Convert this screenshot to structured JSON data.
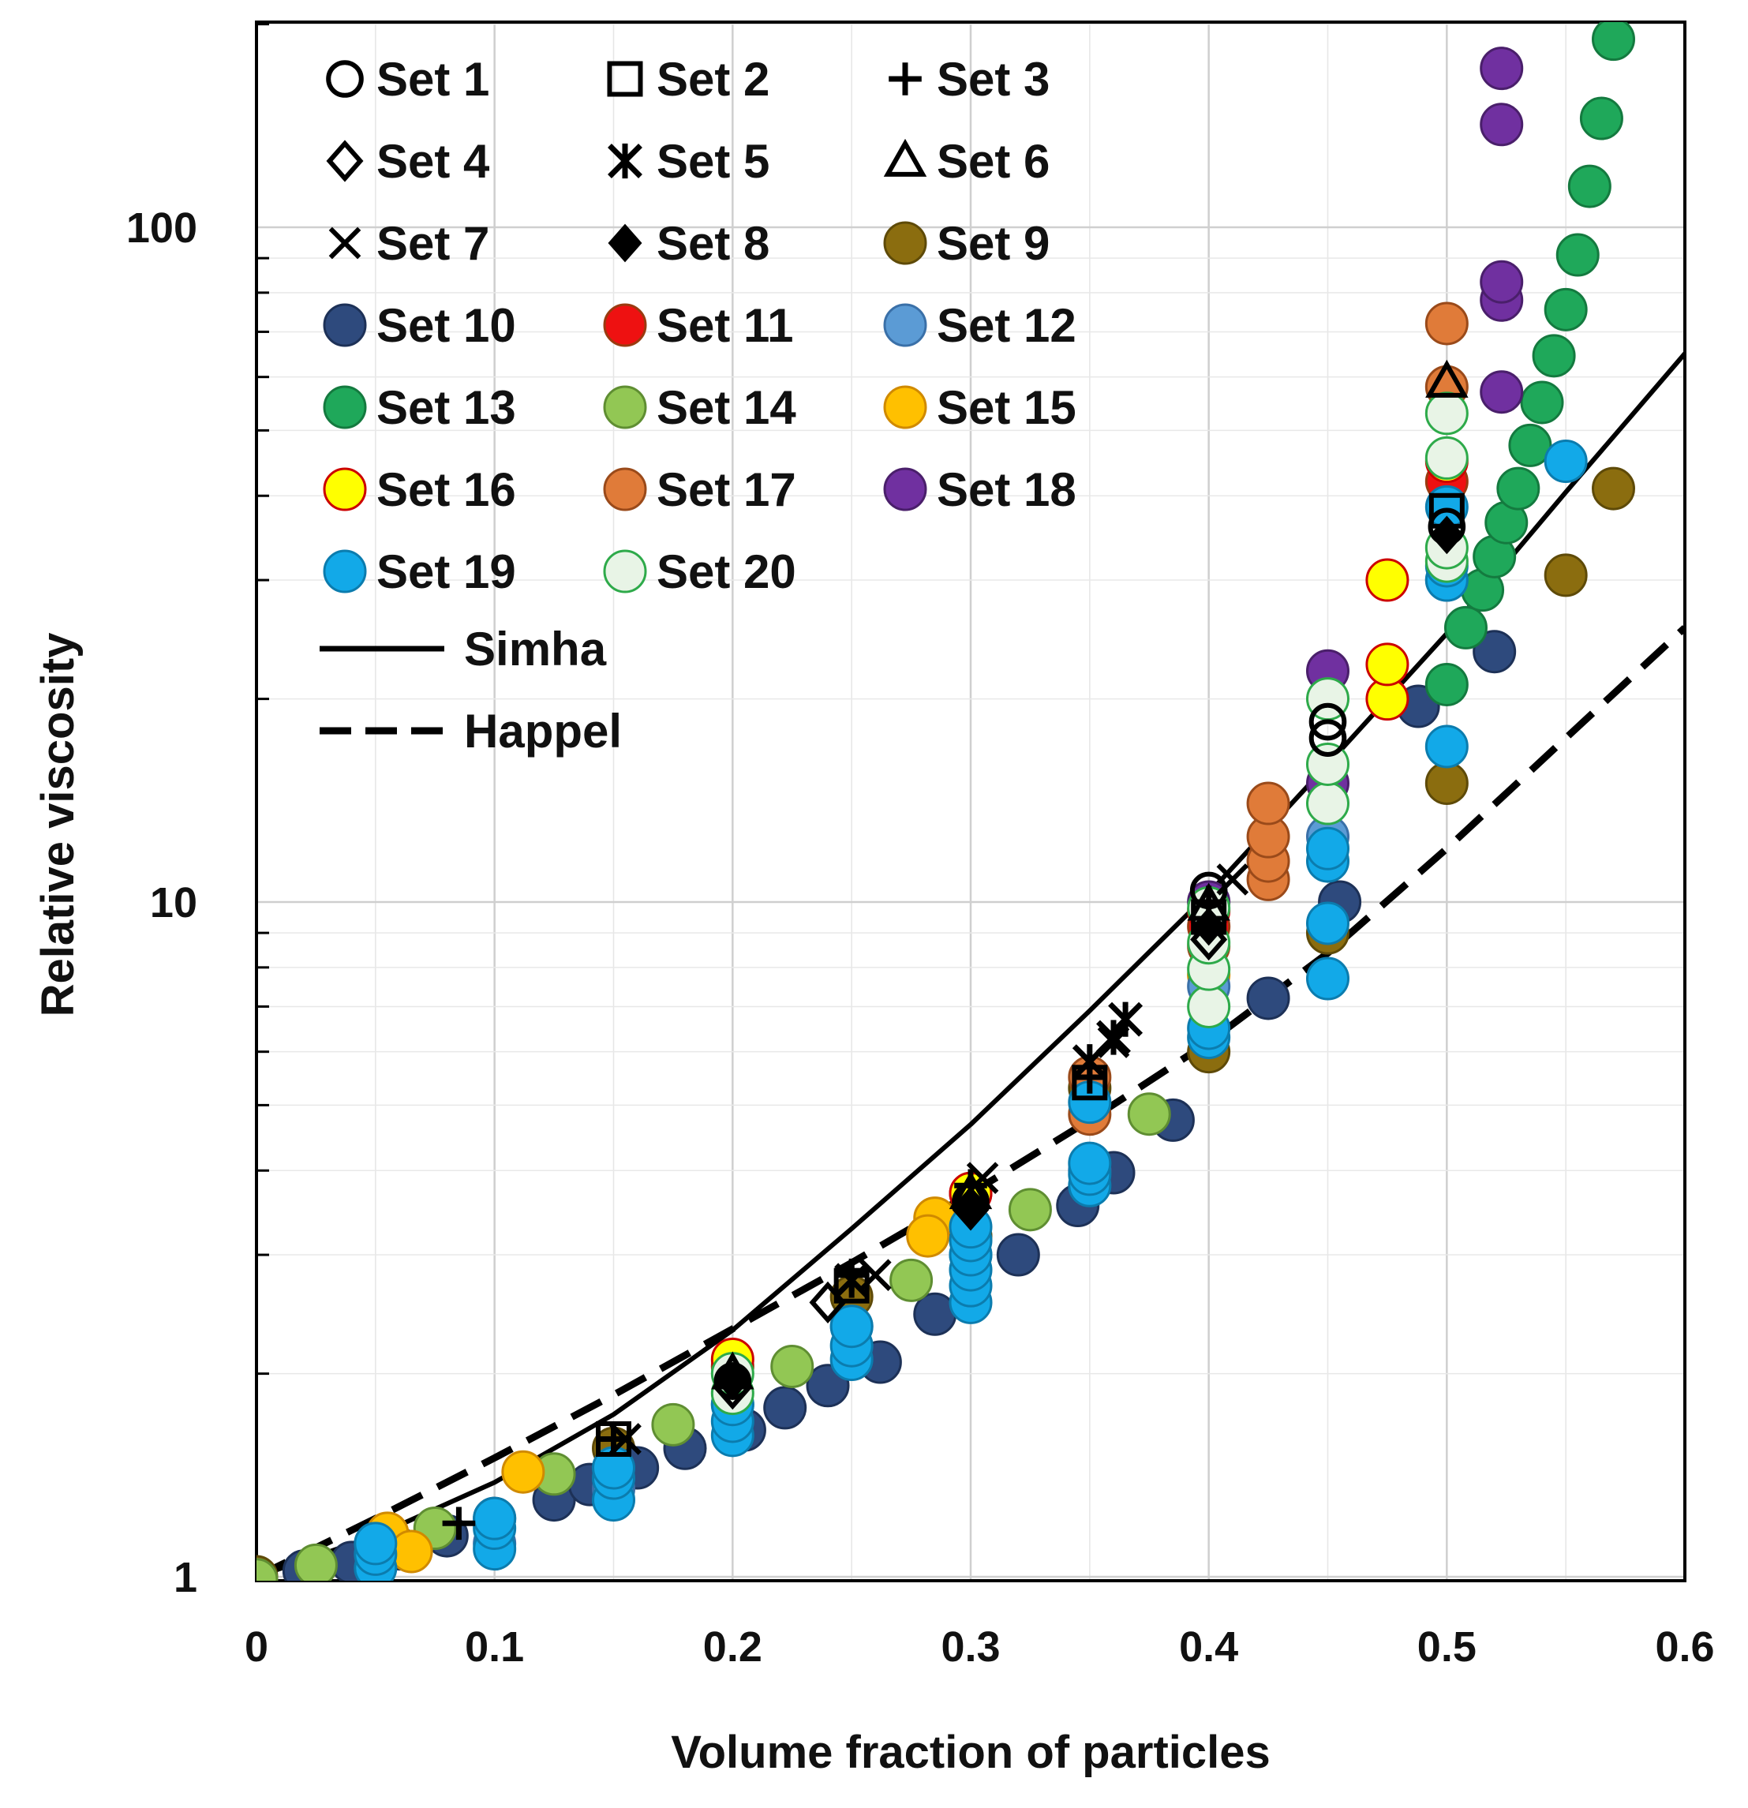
{
  "chart_data": {
    "type": "scatter",
    "title": "",
    "xlabel": "Volume fraction of particles",
    "ylabel": "Relative viscosity",
    "xlim": [
      0,
      0.6
    ],
    "ylim": [
      0.95,
      200
    ],
    "y_scale": "log",
    "x_ticks": [
      0,
      0.1,
      0.2,
      0.3,
      0.4,
      0.5,
      0.6
    ],
    "x_tick_labels": [
      "0",
      "0.1",
      "0.2",
      "0.3",
      "0.4",
      "0.5",
      "0.6"
    ],
    "y_ticks": [
      1,
      10,
      100
    ],
    "y_tick_labels": [
      "1",
      "10",
      "100"
    ],
    "grid": true,
    "legend_position": "top-left",
    "series": [
      {
        "name": "Set 1",
        "marker": "open-circle",
        "fill": "none",
        "stroke": "#000000",
        "points": [
          [
            0.2,
            1.95
          ],
          [
            0.3,
            3.6
          ],
          [
            0.4,
            10.4
          ],
          [
            0.45,
            17.5
          ],
          [
            0.45,
            18.5
          ],
          [
            0.5,
            36
          ]
        ]
      },
      {
        "name": "Set 2",
        "marker": "open-square",
        "fill": "none",
        "stroke": "#000000",
        "points": [
          [
            0.15,
            1.6
          ],
          [
            0.25,
            2.7
          ],
          [
            0.35,
            5.4
          ],
          [
            0.4,
            9.5
          ],
          [
            0.5,
            38
          ]
        ]
      },
      {
        "name": "Set 3",
        "marker": "plus",
        "fill": "none",
        "stroke": "#000000",
        "points": [
          [
            0.085,
            1.2
          ],
          [
            0.15,
            1.6
          ],
          [
            0.25,
            2.8
          ],
          [
            0.3,
            3.8
          ],
          [
            0.35,
            5.5
          ],
          [
            0.4,
            10
          ]
        ]
      },
      {
        "name": "Set 4",
        "marker": "open-diamond",
        "fill": "none",
        "stroke": "#000000",
        "points": [
          [
            0.2,
            1.9
          ],
          [
            0.24,
            2.55
          ],
          [
            0.3,
            3.5
          ],
          [
            0.4,
            8.8
          ]
        ]
      },
      {
        "name": "Set 5",
        "marker": "asterisk",
        "fill": "none",
        "stroke": "#000000",
        "points": [
          [
            0.25,
            2.75
          ],
          [
            0.35,
            5.8
          ],
          [
            0.36,
            6.3
          ],
          [
            0.365,
            6.7
          ]
        ]
      },
      {
        "name": "Set 6",
        "marker": "open-triangle",
        "fill": "none",
        "stroke": "#000000",
        "points": [
          [
            0.2,
            2.0
          ],
          [
            0.3,
            3.7
          ],
          [
            0.4,
            9.9
          ],
          [
            0.5,
            59
          ]
        ]
      },
      {
        "name": "Set 7",
        "marker": "x",
        "fill": "none",
        "stroke": "#000000",
        "points": [
          [
            0.155,
            1.6
          ],
          [
            0.26,
            2.8
          ],
          [
            0.305,
            3.9
          ],
          [
            0.36,
            6.2
          ],
          [
            0.41,
            10.8
          ]
        ]
      },
      {
        "name": "Set 8",
        "marker": "filled-diamond",
        "fill": "#000000",
        "stroke": "#000000",
        "points": [
          [
            0.2,
            1.95
          ],
          [
            0.3,
            3.55
          ],
          [
            0.4,
            9.2
          ],
          [
            0.5,
            35
          ]
        ]
      },
      {
        "name": "Set 9",
        "marker": "circle",
        "fill": "#8B6D0F",
        "stroke": "#5e4a08",
        "points": [
          [
            0,
            1.0
          ],
          [
            0.15,
            1.55
          ],
          [
            0.25,
            2.6
          ],
          [
            0.3,
            3.2
          ],
          [
            0.35,
            5.3
          ],
          [
            0.4,
            6.0
          ],
          [
            0.45,
            9.0
          ],
          [
            0.5,
            15.0
          ],
          [
            0.55,
            30.5
          ],
          [
            0.57,
            41
          ]
        ]
      },
      {
        "name": "Set 10",
        "marker": "circle",
        "fill": "#2E4A7D",
        "stroke": "#1d3157",
        "points": [
          [
            0.02,
            1.02
          ],
          [
            0.04,
            1.05
          ],
          [
            0.06,
            1.1
          ],
          [
            0.08,
            1.15
          ],
          [
            0.1,
            1.22
          ],
          [
            0.125,
            1.3
          ],
          [
            0.14,
            1.37
          ],
          [
            0.16,
            1.45
          ],
          [
            0.18,
            1.55
          ],
          [
            0.205,
            1.65
          ],
          [
            0.222,
            1.78
          ],
          [
            0.24,
            1.92
          ],
          [
            0.262,
            2.08
          ],
          [
            0.285,
            2.45
          ],
          [
            0.32,
            3.0
          ],
          [
            0.345,
            3.55
          ],
          [
            0.36,
            3.97
          ],
          [
            0.385,
            4.75
          ],
          [
            0.425,
            7.2
          ],
          [
            0.455,
            10.0
          ],
          [
            0.488,
            19.5
          ],
          [
            0.52,
            23.5
          ]
        ]
      },
      {
        "name": "Set 11",
        "marker": "circle",
        "fill": "#EE1111",
        "stroke": "#9a3b10",
        "points": [
          [
            0.2,
            2.05
          ],
          [
            0.3,
            3.7
          ],
          [
            0.4,
            9.2
          ],
          [
            0.5,
            42
          ]
        ]
      },
      {
        "name": "Set 12",
        "marker": "circle",
        "fill": "#5B9BD5",
        "stroke": "#3a70a8",
        "points": [
          [
            0.1,
            1.12
          ],
          [
            0.15,
            1.35
          ],
          [
            0.2,
            1.8
          ],
          [
            0.25,
            2.35
          ],
          [
            0.3,
            3.0
          ],
          [
            0.35,
            4.0
          ],
          [
            0.4,
            7.5
          ],
          [
            0.45,
            12.5
          ],
          [
            0.5,
            30
          ]
        ]
      },
      {
        "name": "Set 13",
        "marker": "circle",
        "fill": "#1FA85A",
        "stroke": "#147a3f",
        "points": [
          [
            0.508,
            25.5
          ],
          [
            0.5,
            21.0
          ],
          [
            0.515,
            29.0
          ],
          [
            0.52,
            32.5
          ],
          [
            0.525,
            36.5
          ],
          [
            0.53,
            41.0
          ],
          [
            0.535,
            47.5
          ],
          [
            0.54,
            55.0
          ],
          [
            0.545,
            64.5
          ],
          [
            0.55,
            75.5
          ],
          [
            0.555,
            91.0
          ],
          [
            0.56,
            115.0
          ],
          [
            0.565,
            145.0
          ],
          [
            0.57,
            190.0
          ]
        ]
      },
      {
        "name": "Set 14",
        "marker": "circle",
        "fill": "#92C754",
        "stroke": "#5f8e32",
        "points": [
          [
            0,
            0.99
          ],
          [
            0.025,
            1.04
          ],
          [
            0.075,
            1.18
          ],
          [
            0.125,
            1.42
          ],
          [
            0.175,
            1.68
          ],
          [
            0.225,
            2.05
          ],
          [
            0.275,
            2.75
          ],
          [
            0.325,
            3.5
          ],
          [
            0.375,
            4.85
          ]
        ]
      },
      {
        "name": "Set 15",
        "marker": "circle",
        "fill": "#FFC000",
        "stroke": "#d08a00",
        "points": [
          [
            0.055,
            1.16
          ],
          [
            0.065,
            1.09
          ],
          [
            0.112,
            1.43
          ],
          [
            0.285,
            3.4
          ],
          [
            0.282,
            3.2
          ],
          [
            0.4,
            7.8
          ]
        ]
      },
      {
        "name": "Set 16",
        "marker": "circle",
        "fill": "#FFFF00",
        "stroke": "#CC0000",
        "points": [
          [
            0.2,
            2.1
          ],
          [
            0.3,
            3.7
          ],
          [
            0.4,
            9.7
          ],
          [
            0.475,
            20.0
          ],
          [
            0.475,
            22.5
          ],
          [
            0.475,
            30.0
          ],
          [
            0.5,
            45.0
          ]
        ]
      },
      {
        "name": "Set 17",
        "marker": "circle",
        "fill": "#E07B39",
        "stroke": "#9a4a1a",
        "points": [
          [
            0.35,
            5.5
          ],
          [
            0.35,
            4.85
          ],
          [
            0.4,
            8.6
          ],
          [
            0.425,
            10.8
          ],
          [
            0.425,
            11.5
          ],
          [
            0.425,
            12.5
          ],
          [
            0.425,
            14.0
          ],
          [
            0.5,
            58
          ],
          [
            0.5,
            72
          ]
        ]
      },
      {
        "name": "Set 18",
        "marker": "circle",
        "fill": "#7030A0",
        "stroke": "#4a1f6b",
        "points": [
          [
            0.4,
            10.0
          ],
          [
            0.45,
            15.0
          ],
          [
            0.45,
            22.0
          ],
          [
            0.523,
            57
          ],
          [
            0.523,
            78
          ],
          [
            0.523,
            83
          ],
          [
            0.523,
            142
          ],
          [
            0.523,
            172
          ]
        ]
      },
      {
        "name": "Set 19",
        "marker": "circle",
        "fill": "#12A9E8",
        "stroke": "#0b7cae",
        "points": [
          [
            0.05,
            1.03
          ],
          [
            0.05,
            1.08
          ],
          [
            0.05,
            1.12
          ],
          [
            0.1,
            1.1
          ],
          [
            0.1,
            1.18
          ],
          [
            0.1,
            1.22
          ],
          [
            0.15,
            1.3
          ],
          [
            0.15,
            1.4
          ],
          [
            0.15,
            1.45
          ],
          [
            0.2,
            1.62
          ],
          [
            0.2,
            1.7
          ],
          [
            0.2,
            1.8
          ],
          [
            0.25,
            2.1
          ],
          [
            0.25,
            2.2
          ],
          [
            0.25,
            2.35
          ],
          [
            0.3,
            2.55
          ],
          [
            0.3,
            2.7
          ],
          [
            0.3,
            2.85
          ],
          [
            0.3,
            3.0
          ],
          [
            0.3,
            3.15
          ],
          [
            0.3,
            3.3
          ],
          [
            0.35,
            3.8
          ],
          [
            0.35,
            3.95
          ],
          [
            0.35,
            4.1
          ],
          [
            0.35,
            5.05
          ],
          [
            0.4,
            6.3
          ],
          [
            0.4,
            6.5
          ],
          [
            0.45,
            7.7
          ],
          [
            0.45,
            9.3
          ],
          [
            0.45,
            11.5
          ],
          [
            0.45,
            12.0
          ],
          [
            0.5,
            17.0
          ],
          [
            0.5,
            30.0
          ],
          [
            0.5,
            31.5
          ],
          [
            0.5,
            38.5
          ],
          [
            0.55,
            45.0
          ]
        ]
      },
      {
        "name": "Set 20",
        "marker": "circle",
        "fill": "#E8F4E6",
        "stroke": "#2EAA4A",
        "points": [
          [
            0.2,
            1.87
          ],
          [
            0.2,
            2.0
          ],
          [
            0.4,
            7.0
          ],
          [
            0.4,
            7.95
          ],
          [
            0.4,
            8.7
          ],
          [
            0.4,
            9.8
          ],
          [
            0.45,
            14.0
          ],
          [
            0.45,
            16.0
          ],
          [
            0.45,
            20.0
          ],
          [
            0.5,
            32.0
          ],
          [
            0.5,
            33.5
          ],
          [
            0.5,
            45.5
          ],
          [
            0.5,
            53.0
          ]
        ]
      }
    ],
    "curves": [
      {
        "name": "Simha",
        "style": "solid",
        "color": "#000000",
        "points": [
          [
            0,
            1.0
          ],
          [
            0.05,
            1.15
          ],
          [
            0.1,
            1.38
          ],
          [
            0.15,
            1.74
          ],
          [
            0.2,
            2.32
          ],
          [
            0.25,
            3.28
          ],
          [
            0.3,
            4.68
          ],
          [
            0.35,
            6.9
          ],
          [
            0.4,
            10.3
          ],
          [
            0.45,
            16.0
          ],
          [
            0.5,
            25.0
          ],
          [
            0.55,
            40.5
          ],
          [
            0.6,
            65.0
          ]
        ]
      },
      {
        "name": "Happel",
        "style": "dashed",
        "color": "#000000",
        "points": [
          [
            0,
            1.0
          ],
          [
            0.05,
            1.22
          ],
          [
            0.1,
            1.5
          ],
          [
            0.15,
            1.86
          ],
          [
            0.2,
            2.33
          ],
          [
            0.25,
            2.92
          ],
          [
            0.3,
            3.7
          ],
          [
            0.35,
            4.75
          ],
          [
            0.4,
            6.2
          ],
          [
            0.45,
            8.4
          ],
          [
            0.5,
            12.0
          ],
          [
            0.55,
            17.5
          ],
          [
            0.6,
            25.5
          ]
        ]
      }
    ]
  }
}
